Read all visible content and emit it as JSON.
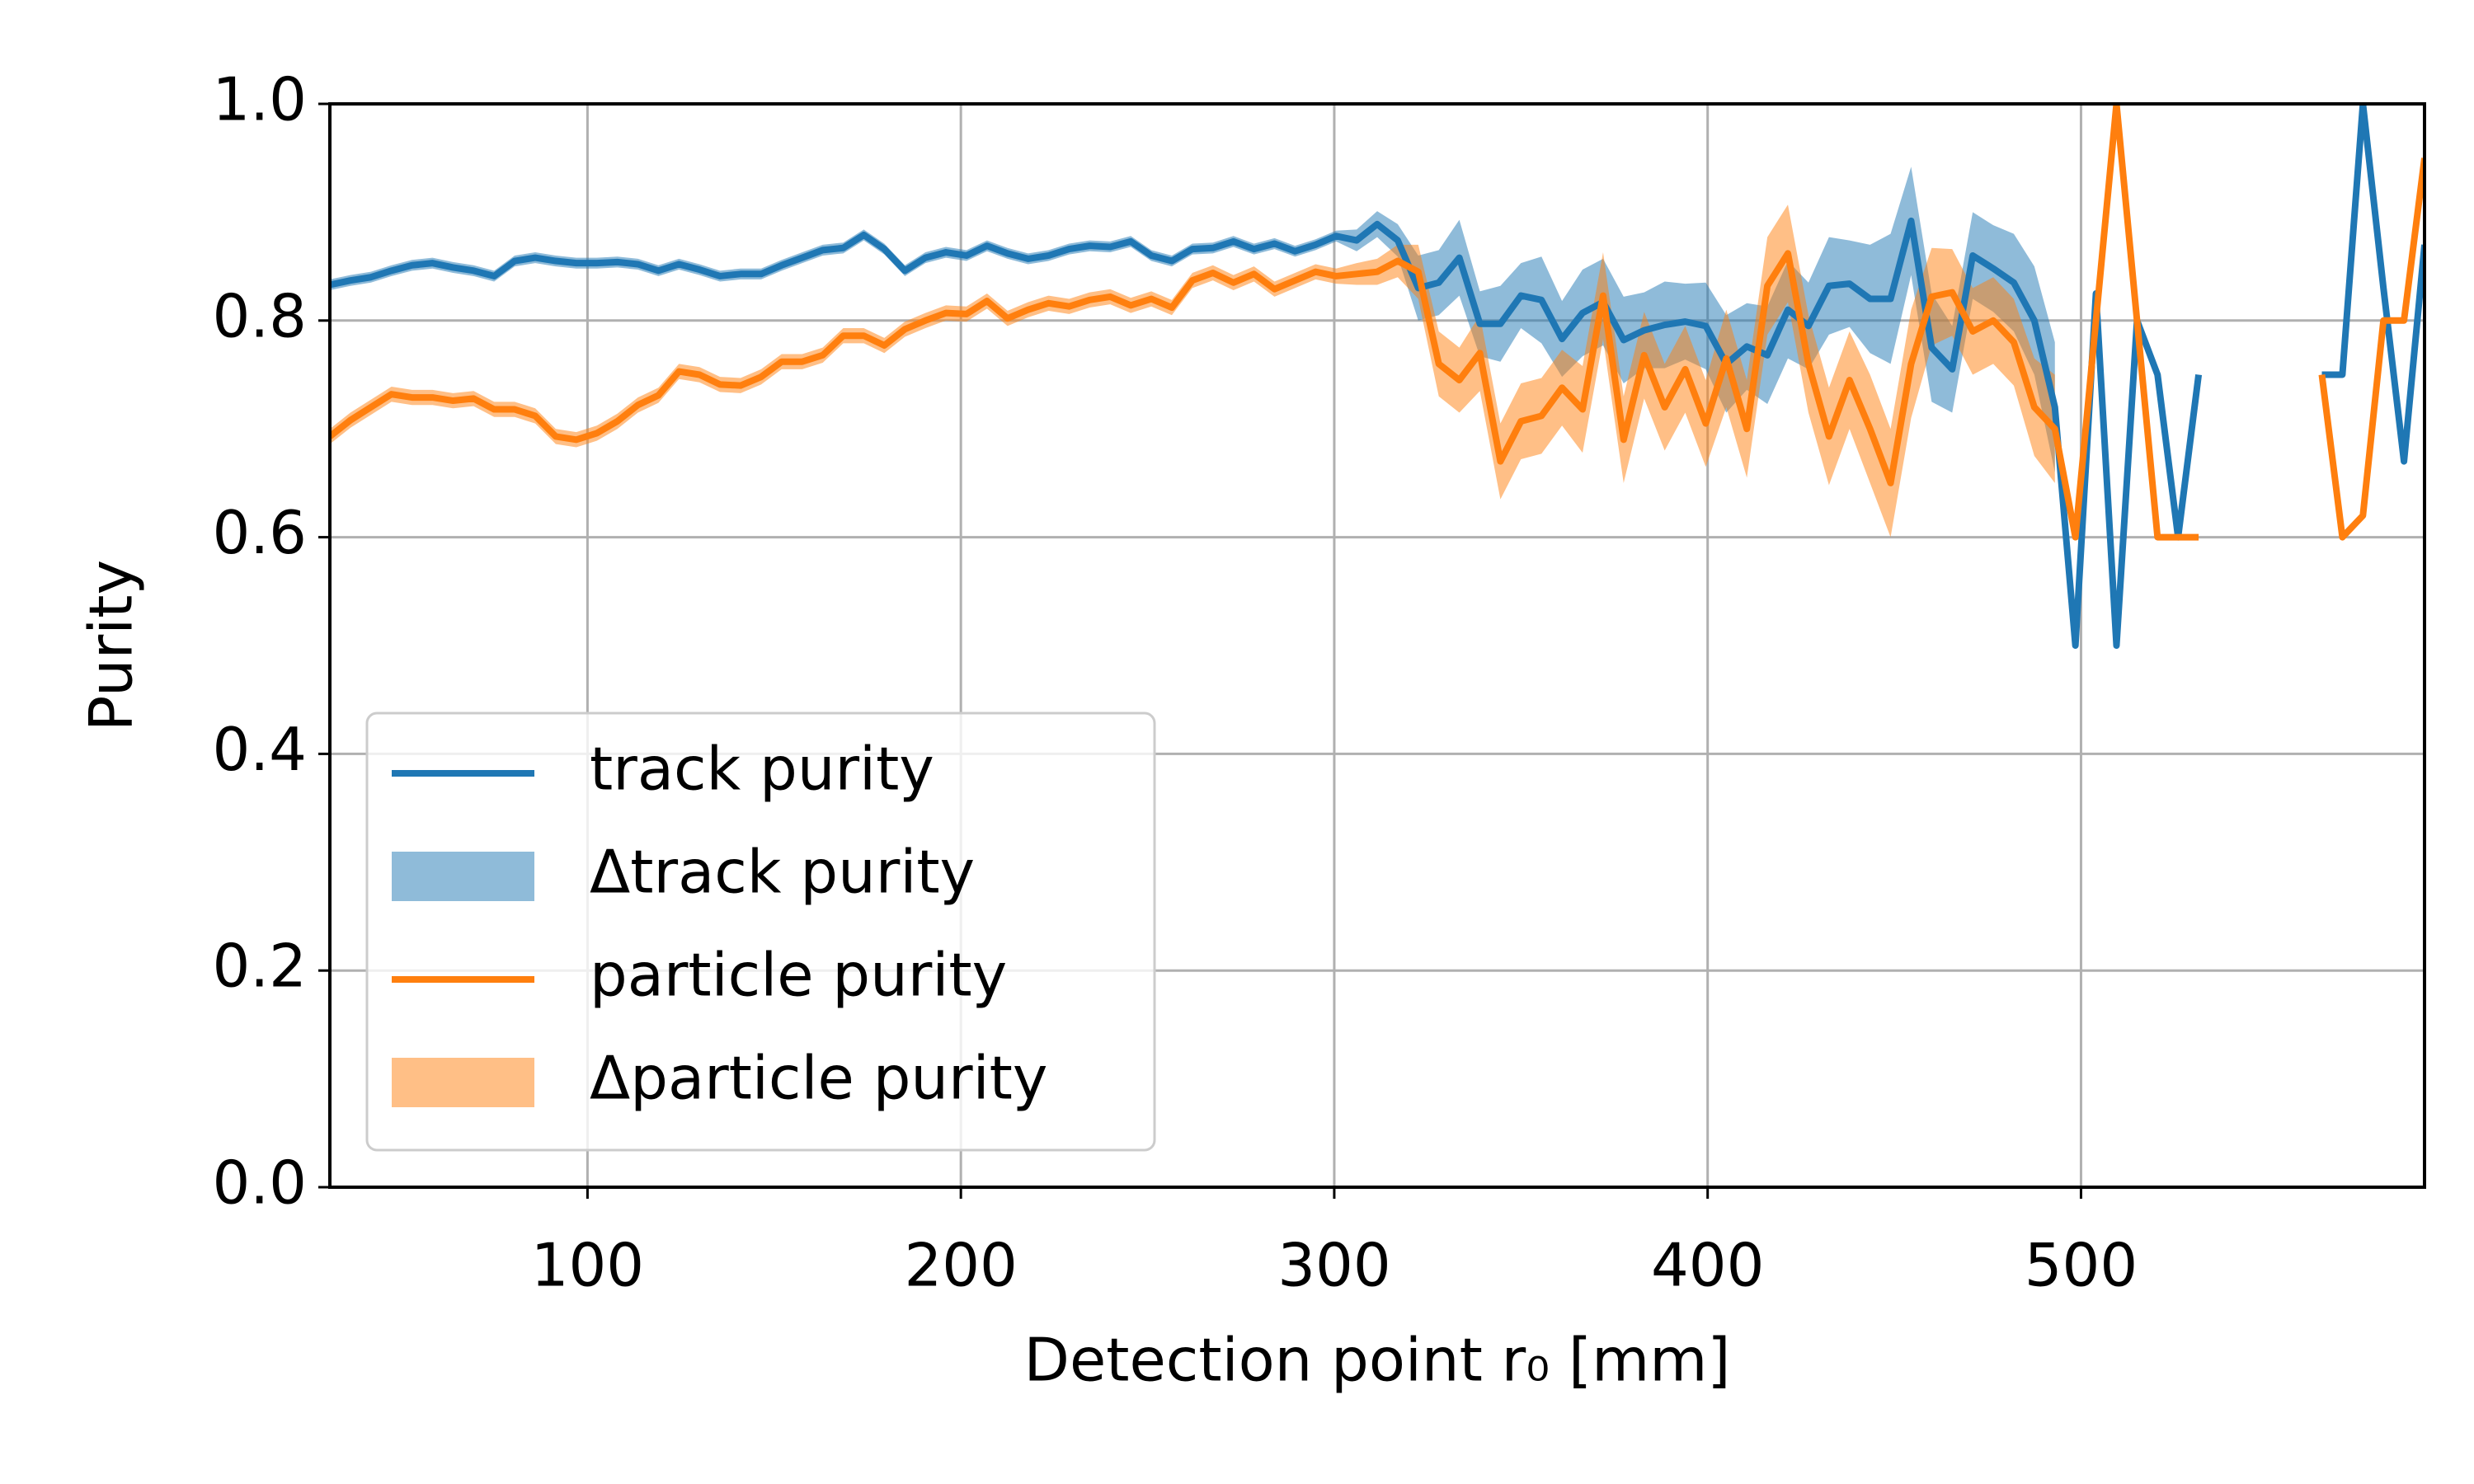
{
  "chart_data": {
    "type": "line",
    "xlabel": "Detection point r₀ [mm]",
    "ylabel": "Purity",
    "x": [
      31,
      36.5,
      42,
      47.5,
      53,
      58.5,
      64,
      69.5,
      75,
      80.5,
      86,
      91.5,
      97,
      102.5,
      108,
      113.5,
      119,
      124.5,
      130,
      135.5,
      141,
      146.5,
      152,
      157.5,
      163,
      168.5,
      174,
      179.5,
      185,
      190.5,
      196,
      201.5,
      207,
      212.5,
      218,
      223.5,
      229,
      234.5,
      240,
      245.5,
      251,
      256.5,
      262,
      267.5,
      273,
      278.5,
      284,
      289.5,
      295,
      300.5,
      306,
      311.5,
      317,
      322.5,
      328,
      333.5,
      339,
      344.5,
      350,
      355.5,
      361,
      366.5,
      372,
      377.5,
      383,
      388.5,
      394,
      399.5,
      405,
      410.5,
      416,
      421.5,
      427,
      432.5,
      438,
      443.5,
      449,
      454.5,
      460,
      465.5,
      471,
      476.5,
      482,
      487.5,
      493,
      498.5,
      504,
      509.5,
      515,
      520.5,
      526,
      531.5,
      537,
      542.5,
      548,
      553.5,
      559,
      564.5,
      570,
      575.5,
      581,
      586.5,
      592
    ],
    "series": [
      {
        "name": "track purity",
        "band_name": "Δtrack purity",
        "color": "#1f77b4",
        "values": [
          0.833,
          0.837,
          0.84,
          0.846,
          0.851,
          0.853,
          0.849,
          0.846,
          0.841,
          0.855,
          0.858,
          0.855,
          0.853,
          0.853,
          0.854,
          0.852,
          0.846,
          0.852,
          0.847,
          0.841,
          0.843,
          0.843,
          0.851,
          0.858,
          0.865,
          0.867,
          0.879,
          0.866,
          0.846,
          0.858,
          0.863,
          0.86,
          0.869,
          0.862,
          0.857,
          0.86,
          0.866,
          0.869,
          0.868,
          0.873,
          0.86,
          0.855,
          0.866,
          0.867,
          0.873,
          0.866,
          0.871,
          0.864,
          0.87,
          0.878,
          0.874,
          0.889,
          0.874,
          0.83,
          0.835,
          0.858,
          0.797,
          0.797,
          0.823,
          0.819,
          0.783,
          0.807,
          0.817,
          0.782,
          0.791,
          0.796,
          0.799,
          0.795,
          0.76,
          0.776,
          0.768,
          0.81,
          0.795,
          0.832,
          0.834,
          0.82,
          0.82,
          0.892,
          0.775,
          0.755,
          0.86,
          0.848,
          0.835,
          0.8,
          0.72,
          0.5,
          0.825,
          0.5,
          0.8,
          0.75,
          0.6,
          0.75,
          null,
          null,
          null,
          null,
          null,
          0.75,
          0.75,
          1.0,
          0.83,
          0.67,
          0.87
        ],
        "errors": [
          0.005,
          0.005,
          0.005,
          0.005,
          0.005,
          0.005,
          0.005,
          0.005,
          0.005,
          0.005,
          0.005,
          0.005,
          0.005,
          0.005,
          0.005,
          0.005,
          0.005,
          0.005,
          0.005,
          0.005,
          0.005,
          0.005,
          0.005,
          0.005,
          0.005,
          0.005,
          0.005,
          0.005,
          0.005,
          0.005,
          0.005,
          0.005,
          0.005,
          0.005,
          0.005,
          0.005,
          0.005,
          0.005,
          0.005,
          0.005,
          0.005,
          0.005,
          0.005,
          0.005,
          0.005,
          0.005,
          0.005,
          0.005,
          0.005,
          0.005,
          0.01,
          0.012,
          0.015,
          0.03,
          0.03,
          0.035,
          0.03,
          0.035,
          0.03,
          0.04,
          0.035,
          0.04,
          0.04,
          0.04,
          0.035,
          0.04,
          0.035,
          0.04,
          0.045,
          0.04,
          0.045,
          0.045,
          0.04,
          0.045,
          0.04,
          0.05,
          0.06,
          0.05,
          0.05,
          0.04,
          0.04,
          0.04,
          0.045,
          0.05,
          0.06,
          null,
          null,
          null,
          null,
          null,
          null,
          null,
          null,
          null,
          null,
          null,
          null,
          null,
          null,
          null,
          null,
          null,
          null
        ]
      },
      {
        "name": "particle purity",
        "band_name": "Δparticle purity",
        "color": "#ff7f0e",
        "values": [
          0.693,
          0.708,
          0.72,
          0.732,
          0.729,
          0.729,
          0.726,
          0.728,
          0.718,
          0.718,
          0.712,
          0.693,
          0.69,
          0.696,
          0.707,
          0.722,
          0.731,
          0.753,
          0.75,
          0.741,
          0.74,
          0.748,
          0.762,
          0.762,
          0.768,
          0.786,
          0.786,
          0.777,
          0.792,
          0.8,
          0.807,
          0.806,
          0.818,
          0.802,
          0.81,
          0.816,
          0.813,
          0.819,
          0.822,
          0.814,
          0.82,
          0.812,
          0.837,
          0.844,
          0.835,
          0.843,
          0.829,
          0.837,
          0.845,
          0.841,
          0.843,
          0.845,
          0.855,
          0.845,
          0.76,
          0.745,
          0.77,
          0.67,
          0.707,
          0.712,
          0.738,
          0.718,
          0.823,
          0.69,
          0.768,
          0.72,
          0.755,
          0.705,
          0.765,
          0.7,
          0.832,
          0.862,
          0.76,
          0.693,
          0.745,
          0.7,
          0.65,
          0.76,
          0.822,
          0.826,
          0.79,
          0.8,
          0.78,
          0.72,
          0.7,
          0.6,
          0.8,
          1.0,
          0.8,
          0.6,
          0.6,
          0.6,
          null,
          null,
          null,
          null,
          null,
          0.75,
          0.6,
          0.62,
          0.8,
          0.8,
          0.95
        ],
        "errors": [
          0.007,
          0.007,
          0.007,
          0.007,
          0.007,
          0.007,
          0.007,
          0.007,
          0.007,
          0.007,
          0.007,
          0.007,
          0.007,
          0.007,
          0.007,
          0.007,
          0.007,
          0.007,
          0.007,
          0.007,
          0.007,
          0.007,
          0.007,
          0.007,
          0.007,
          0.007,
          0.007,
          0.007,
          0.007,
          0.007,
          0.007,
          0.007,
          0.007,
          0.007,
          0.007,
          0.007,
          0.007,
          0.007,
          0.007,
          0.007,
          0.007,
          0.007,
          0.007,
          0.007,
          0.007,
          0.007,
          0.007,
          0.007,
          0.007,
          0.007,
          0.01,
          0.012,
          0.015,
          0.025,
          0.03,
          0.03,
          0.035,
          0.035,
          0.035,
          0.035,
          0.035,
          0.04,
          0.04,
          0.04,
          0.04,
          0.04,
          0.04,
          0.04,
          0.045,
          0.045,
          0.045,
          0.045,
          0.045,
          0.045,
          0.045,
          0.05,
          0.05,
          0.05,
          0.045,
          0.04,
          0.04,
          0.04,
          0.04,
          0.045,
          0.05,
          null,
          null,
          null,
          null,
          null,
          null,
          null,
          null,
          null,
          null,
          null,
          null,
          null,
          null,
          null,
          null,
          null,
          null
        ]
      }
    ],
    "xlim": [
      31,
      592
    ],
    "ylim": [
      0,
      1
    ],
    "xticks": [
      100,
      200,
      300,
      400,
      500
    ],
    "yticks": [
      {
        "value": 0,
        "label": "0.0"
      },
      0.2,
      0.4,
      0.6,
      0.8,
      {
        "value": 1,
        "label": "1.0"
      }
    ],
    "grid": true,
    "legend": "lower left"
  }
}
